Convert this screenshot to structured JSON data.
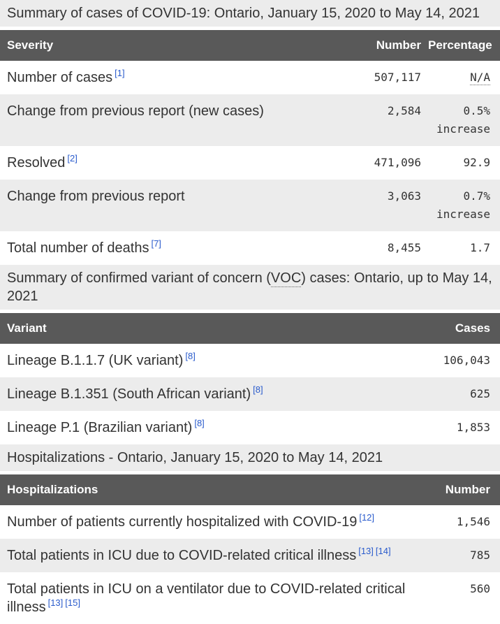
{
  "colors": {
    "header_bg": "#595959",
    "header_text": "#ffffff",
    "stripe_bg": "#ececec",
    "caption_bg": "#ececec",
    "text": "#333333",
    "link": "#2a5bcc"
  },
  "tables": [
    {
      "id": "case-summary",
      "caption": {
        "parts": [
          {
            "type": "text",
            "value": "Summary of cases of COVID-19: Ontario, January 15, 2020 to May 14, 2021"
          }
        ]
      },
      "headers": [
        "Severity",
        "Number",
        "Percentage"
      ],
      "rows": [
        {
          "label": "Number of cases",
          "footnotes": [
            "[1]"
          ],
          "cells": [
            {
              "value": "507,117"
            },
            {
              "value": "N/A",
              "abbr": true
            }
          ]
        },
        {
          "label": "Change from previous report (new cases)",
          "footnotes": [],
          "cells": [
            {
              "value": "2,584"
            },
            {
              "value": "0.5% increase"
            }
          ]
        },
        {
          "label": "Resolved",
          "footnotes": [
            "[2]"
          ],
          "cells": [
            {
              "value": "471,096"
            },
            {
              "value": "92.9"
            }
          ]
        },
        {
          "label": "Change from previous report",
          "footnotes": [],
          "cells": [
            {
              "value": "3,063"
            },
            {
              "value": "0.7% increase"
            }
          ]
        },
        {
          "label": "Total number of deaths",
          "footnotes": [
            "[7]"
          ],
          "cells": [
            {
              "value": "8,455"
            },
            {
              "value": "1.7"
            }
          ]
        }
      ]
    },
    {
      "id": "voc-summary",
      "caption": {
        "parts": [
          {
            "type": "text",
            "value": "Summary of confirmed variant of concern ("
          },
          {
            "type": "abbr",
            "value": "VOC"
          },
          {
            "type": "text",
            "value": ") cases: Ontario, up to May 14, 2021"
          }
        ]
      },
      "headers": [
        "Variant",
        "Cases"
      ],
      "rows": [
        {
          "label": "Lineage B.1.1.7 (UK variant)",
          "footnotes": [
            "[8]"
          ],
          "cells": [
            {
              "value": "106,043"
            }
          ]
        },
        {
          "label": "Lineage B.1.351 (South African variant)",
          "footnotes": [
            "[8]"
          ],
          "cells": [
            {
              "value": "625"
            }
          ]
        },
        {
          "label": "Lineage P.1 (Brazilian variant)",
          "footnotes": [
            "[8]"
          ],
          "cells": [
            {
              "value": "1,853"
            }
          ]
        }
      ]
    },
    {
      "id": "hospitalizations",
      "caption": {
        "parts": [
          {
            "type": "text",
            "value": "Hospitalizations - Ontario, January 15, 2020 to May 14, 2021"
          }
        ]
      },
      "headers": [
        "Hospitalizations",
        "Number"
      ],
      "rows": [
        {
          "label": "Number of patients currently hospitalized with COVID-19",
          "footnotes": [
            "[12]"
          ],
          "cells": [
            {
              "value": "1,546"
            }
          ]
        },
        {
          "label": "Total patients in ICU due to COVID-related critical illness",
          "footnotes": [
            "[13]",
            "[14]"
          ],
          "cells": [
            {
              "value": "785"
            }
          ]
        },
        {
          "label": "Total patients in ICU on a ventilator due to COVID-related critical illness",
          "footnotes": [
            "[13]",
            "[15]"
          ],
          "cells": [
            {
              "value": "560"
            }
          ]
        }
      ]
    }
  ]
}
